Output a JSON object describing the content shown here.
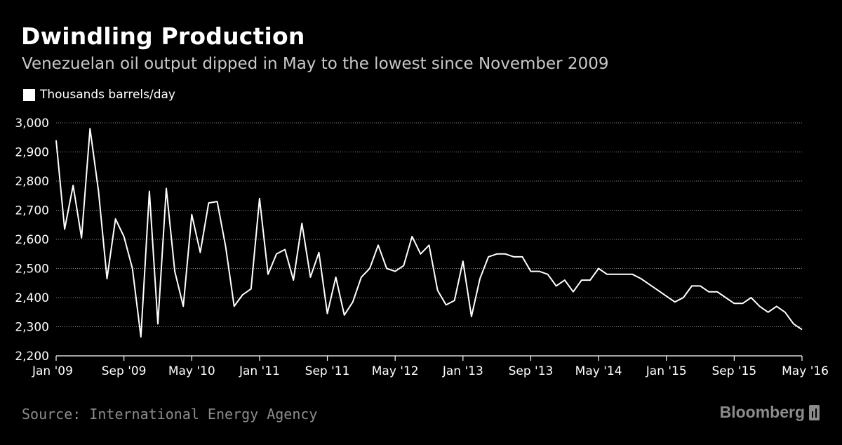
{
  "header": {
    "title": "Dwindling Production",
    "subtitle": "Venezuelan oil output dipped in May to the lowest since November 2009"
  },
  "legend": {
    "label": "Thousands barrels/day",
    "color": "#ffffff"
  },
  "footer": {
    "source": "Source: International Energy Agency",
    "brand": "Bloomberg",
    "brand_icon": "bloomberg-terminal-icon"
  },
  "colors": {
    "background": "#000000",
    "line": "#ffffff",
    "grid": "#888888",
    "muted": "#8c8c8c"
  },
  "chart_data": {
    "type": "line",
    "title": "Dwindling Production",
    "subtitle": "Venezuelan oil output dipped in May to the lowest since November 2009",
    "xlabel": "",
    "ylabel": "",
    "ylim": [
      2200,
      3000
    ],
    "yticks": [
      3000,
      2900,
      2800,
      2700,
      2600,
      2500,
      2400,
      2300,
      2200
    ],
    "ytick_labels": [
      "3,000",
      "2,900",
      "2,800",
      "2,700",
      "2,600",
      "2,500",
      "2,400",
      "2,300",
      "2,200"
    ],
    "xticks": [
      {
        "index": 0,
        "label": "Jan '09"
      },
      {
        "index": 8,
        "label": "Sep '09"
      },
      {
        "index": 16,
        "label": "May '10"
      },
      {
        "index": 24,
        "label": "Jan '11"
      },
      {
        "index": 32,
        "label": "Sep '11"
      },
      {
        "index": 40,
        "label": "May '12"
      },
      {
        "index": 48,
        "label": "Jan '13"
      },
      {
        "index": 56,
        "label": "Sep '13"
      },
      {
        "index": 64,
        "label": "May '14"
      },
      {
        "index": 72,
        "label": "Jan '15"
      },
      {
        "index": 80,
        "label": "Sep '15"
      },
      {
        "index": 88,
        "label": "May '16"
      }
    ],
    "grid": true,
    "legend_position": "top-left",
    "series": [
      {
        "name": "Thousands barrels/day",
        "start": "Jan 2009",
        "frequency": "monthly",
        "values": [
          2940,
          2635,
          2785,
          2605,
          2980,
          2765,
          2465,
          2670,
          2610,
          2500,
          2265,
          2765,
          2310,
          2775,
          2490,
          2370,
          2685,
          2555,
          2725,
          2730,
          2575,
          2370,
          2410,
          2430,
          2740,
          2480,
          2550,
          2565,
          2460,
          2655,
          2470,
          2555,
          2345,
          2470,
          2340,
          2385,
          2470,
          2500,
          2580,
          2500,
          2490,
          2510,
          2610,
          2550,
          2580,
          2425,
          2375,
          2390,
          2525,
          2335,
          2465,
          2540,
          2550,
          2550,
          2540,
          2540,
          2490,
          2490,
          2480,
          2440,
          2460,
          2420,
          2460,
          2460,
          2500,
          2480,
          2480,
          2480,
          2480,
          2465,
          2445,
          2425,
          2405,
          2385,
          2400,
          2440,
          2440,
          2420,
          2420,
          2400,
          2380,
          2380,
          2400,
          2370,
          2350,
          2370,
          2350,
          2310,
          2290
        ]
      }
    ]
  }
}
